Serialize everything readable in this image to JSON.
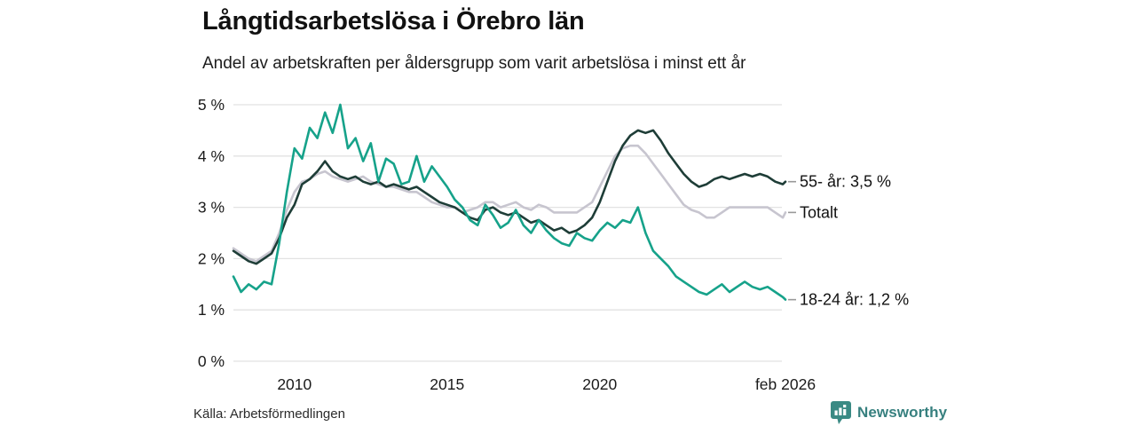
{
  "header": {
    "title": "Långtidsarbetslösa i Örebro län",
    "subtitle": "Andel av arbetskraften per åldersgrupp som varit arbetslösa i minst ett år"
  },
  "footer": {
    "source": "Källa: Arbetsförmedlingen",
    "brand": "Newsworthy"
  },
  "colors": {
    "series_55": "#1e3d37",
    "series_total": "#c7c5cf",
    "series_1824": "#16a28a",
    "grid": "#e2e2e2",
    "tick_text": "#1a1a1a",
    "end_dash": "#999999",
    "brand_teal": "#3a8a84"
  },
  "chart_data": {
    "type": "line",
    "title": "Långtidsarbetslösa i Örebro län",
    "subtitle": "Andel av arbetskraften per åldersgrupp som varit arbetslösa i minst ett år",
    "xlabel": "",
    "ylabel": "",
    "xlim": [
      2008,
      2026.083
    ],
    "ylim": [
      0,
      5
    ],
    "grid": true,
    "legend_position": "right-end-labels",
    "y_ticks": [
      {
        "v": 0,
        "label": "0 %"
      },
      {
        "v": 1,
        "label": "1 %"
      },
      {
        "v": 2,
        "label": "2 %"
      },
      {
        "v": 3,
        "label": "3 %"
      },
      {
        "v": 4,
        "label": "4 %"
      },
      {
        "v": 5,
        "label": "5 %"
      }
    ],
    "x_ticks": [
      {
        "v": 2010,
        "label": "2010"
      },
      {
        "v": 2015,
        "label": "2015"
      },
      {
        "v": 2020,
        "label": "2020"
      },
      {
        "v": 2026.083,
        "label": "feb 2026"
      }
    ],
    "x": [
      2008,
      2008.25,
      2008.5,
      2008.75,
      2009,
      2009.25,
      2009.5,
      2009.75,
      2010,
      2010.25,
      2010.5,
      2010.75,
      2011,
      2011.25,
      2011.5,
      2011.75,
      2012,
      2012.25,
      2012.5,
      2012.75,
      2013,
      2013.25,
      2013.5,
      2013.75,
      2014,
      2014.25,
      2014.5,
      2014.75,
      2015,
      2015.25,
      2015.5,
      2015.75,
      2016,
      2016.25,
      2016.5,
      2016.75,
      2017,
      2017.25,
      2017.5,
      2017.75,
      2018,
      2018.25,
      2018.5,
      2018.75,
      2019,
      2019.25,
      2019.5,
      2019.75,
      2020,
      2020.25,
      2020.5,
      2020.75,
      2021,
      2021.25,
      2021.5,
      2021.75,
      2022,
      2022.25,
      2022.5,
      2022.75,
      2023,
      2023.25,
      2023.5,
      2023.75,
      2024,
      2024.25,
      2024.5,
      2024.75,
      2025,
      2025.25,
      2025.5,
      2025.75,
      2026,
      2026.083
    ],
    "series": [
      {
        "name": "Totalt",
        "end_label": "Totalt",
        "color_key": "series_total",
        "values": [
          2.2,
          2.1,
          2.0,
          1.95,
          2.05,
          2.15,
          2.5,
          2.95,
          3.3,
          3.5,
          3.55,
          3.65,
          3.7,
          3.6,
          3.55,
          3.5,
          3.55,
          3.6,
          3.5,
          3.45,
          3.4,
          3.4,
          3.35,
          3.3,
          3.3,
          3.2,
          3.1,
          3.05,
          3.0,
          3.0,
          2.9,
          2.95,
          3.0,
          3.1,
          3.1,
          3.0,
          3.05,
          3.1,
          3.0,
          2.95,
          3.05,
          3.0,
          2.9,
          2.9,
          2.9,
          2.9,
          3.0,
          3.1,
          3.4,
          3.7,
          4.0,
          4.15,
          4.2,
          4.2,
          4.05,
          3.85,
          3.65,
          3.45,
          3.25,
          3.05,
          2.95,
          2.9,
          2.8,
          2.8,
          2.9,
          3.0,
          3.0,
          3.0,
          3.0,
          3.0,
          3.0,
          2.9,
          2.8,
          2.9
        ]
      },
      {
        "name": "55- år",
        "end_label": "55- år: 3,5 %",
        "color_key": "series_55",
        "values": [
          2.15,
          2.05,
          1.95,
          1.9,
          2.0,
          2.1,
          2.4,
          2.8,
          3.05,
          3.45,
          3.55,
          3.7,
          3.9,
          3.7,
          3.6,
          3.55,
          3.6,
          3.5,
          3.45,
          3.5,
          3.4,
          3.45,
          3.4,
          3.35,
          3.4,
          3.3,
          3.2,
          3.1,
          3.05,
          3.0,
          2.9,
          2.8,
          2.75,
          2.95,
          3.0,
          2.9,
          2.85,
          2.9,
          2.8,
          2.7,
          2.75,
          2.65,
          2.55,
          2.6,
          2.5,
          2.55,
          2.65,
          2.8,
          3.1,
          3.5,
          3.9,
          4.2,
          4.4,
          4.5,
          4.45,
          4.5,
          4.3,
          4.05,
          3.85,
          3.65,
          3.5,
          3.4,
          3.45,
          3.55,
          3.6,
          3.55,
          3.6,
          3.65,
          3.6,
          3.65,
          3.6,
          3.5,
          3.45,
          3.5
        ]
      },
      {
        "name": "18-24 år",
        "end_label": "18-24 år: 1,2 %",
        "color_key": "series_1824",
        "values": [
          1.65,
          1.35,
          1.5,
          1.4,
          1.55,
          1.5,
          2.3,
          3.3,
          4.15,
          3.95,
          4.55,
          4.35,
          4.85,
          4.45,
          5.0,
          4.15,
          4.35,
          3.9,
          4.25,
          3.5,
          3.95,
          3.85,
          3.45,
          3.5,
          4.0,
          3.5,
          3.8,
          3.6,
          3.4,
          3.15,
          3.0,
          2.75,
          2.65,
          3.05,
          2.85,
          2.6,
          2.7,
          2.95,
          2.65,
          2.5,
          2.75,
          2.55,
          2.4,
          2.3,
          2.25,
          2.5,
          2.4,
          2.35,
          2.55,
          2.7,
          2.6,
          2.75,
          2.7,
          3.0,
          2.5,
          2.15,
          2.0,
          1.85,
          1.65,
          1.55,
          1.45,
          1.35,
          1.3,
          1.4,
          1.5,
          1.35,
          1.45,
          1.55,
          1.45,
          1.4,
          1.45,
          1.35,
          1.25,
          1.2
        ]
      }
    ]
  }
}
